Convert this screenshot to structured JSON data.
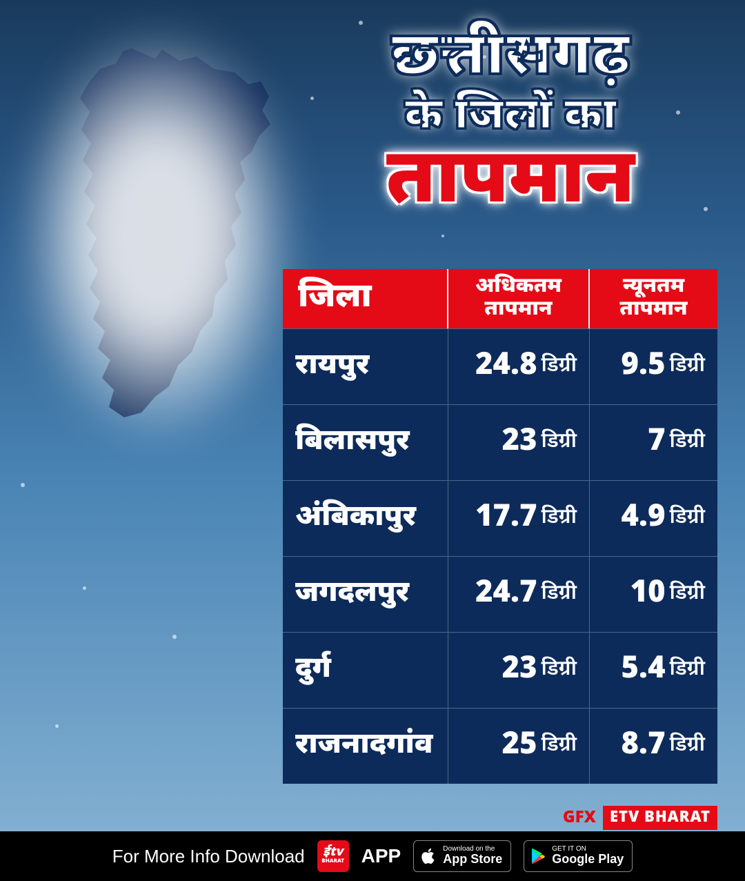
{
  "title": {
    "line1": "छत्तीसगढ़",
    "line2": "के जिलों का",
    "line3": "तापमान"
  },
  "table": {
    "unit": "डिग्री",
    "headers": {
      "district": "जिला",
      "max_l1": "अधिकतम",
      "max_l2": "तापमान",
      "min_l1": "न्यूनतम",
      "min_l2": "तापमान"
    },
    "rows": [
      {
        "district": "रायपुर",
        "max": "24.8",
        "min": "9.5"
      },
      {
        "district": "बिलासपुर",
        "max": "23",
        "min": "7"
      },
      {
        "district": "अंबिकापुर",
        "max": "17.7",
        "min": "4.9"
      },
      {
        "district": "जगदलपुर",
        "max": "24.7",
        "min": "10"
      },
      {
        "district": "दुर्ग",
        "max": "23",
        "min": "5.4"
      },
      {
        "district": "राजनादगांव",
        "max": "25",
        "min": "8.7"
      }
    ]
  },
  "colors": {
    "header_bg": "#e40b17",
    "cell_bg": "#0d2b5a",
    "map_fill": "#0d2b5a",
    "accent_red": "#e40b17"
  },
  "branding": {
    "gfx": "GFX",
    "etv": "ETV BHARAT"
  },
  "footer": {
    "text": "For More Info Download",
    "app_word": "APP",
    "appstore_small": "Download on the",
    "appstore_big": "App Store",
    "play_small": "GET IT ON",
    "play_big": "Google Play",
    "etv_logo_top": "ईtv",
    "etv_logo_sub": "BHARAT"
  }
}
